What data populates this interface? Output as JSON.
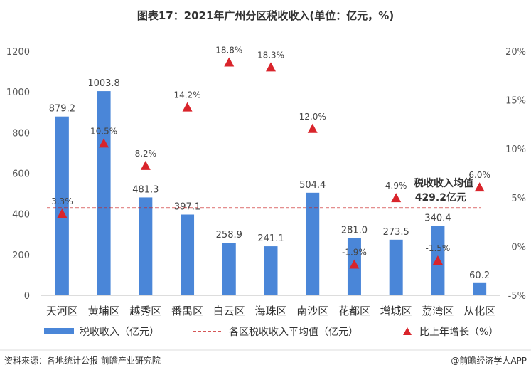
{
  "chart_data": {
    "type": "bar",
    "title": "图表17：2021年广州分区税收收入(单位：亿元，%)",
    "categories": [
      "天河区",
      "黄埔区",
      "越秀区",
      "番禺区",
      "白云区",
      "海珠区",
      "南沙区",
      "花都区",
      "增城区",
      "荔湾区",
      "从化区"
    ],
    "series": [
      {
        "name": "税收收入（亿元）",
        "type": "bar",
        "axis": "left",
        "color": "#4a86d8",
        "values": [
          879.2,
          1003.8,
          481.3,
          397.1,
          258.9,
          241.1,
          504.4,
          281.0,
          273.5,
          340.4,
          60.2
        ],
        "labels": [
          "879.2",
          "1003.8",
          "481.3",
          "397.1",
          "258.9",
          "241.1",
          "504.4",
          "281.0",
          "273.5",
          "340.4",
          "60.2"
        ]
      },
      {
        "name": "比上年增长（%）",
        "type": "scatter",
        "marker": "triangle",
        "axis": "right",
        "color": "#d9242b",
        "values": [
          3.3,
          10.5,
          8.2,
          14.2,
          18.8,
          18.3,
          12.0,
          -1.9,
          4.9,
          -1.5,
          6.0
        ],
        "labels": [
          "3.3%",
          "10.5%",
          "8.2%",
          "14.2%",
          "18.8%",
          "18.3%",
          "12.0%",
          "-1.9%",
          "4.9%",
          "-1.5%",
          "6.0%"
        ]
      },
      {
        "name": "各区税收收入平均值（亿元）",
        "type": "line",
        "axis": "left",
        "color": "#c81e1e",
        "value": 429.2
      }
    ],
    "y_left": {
      "min": 0,
      "max": 1200,
      "ticks": [
        "0",
        "200",
        "400",
        "600",
        "800",
        "1000",
        "1200"
      ]
    },
    "y_right": {
      "min": -5,
      "max": 20,
      "ticks": [
        "-5%",
        "0%",
        "5%",
        "10%",
        "15%",
        "20%"
      ]
    },
    "annotation": {
      "line1": "税收收入均值",
      "line2": "429.2亿元"
    },
    "legend_position": "bottom",
    "grid": false
  },
  "source": "资料来源：各地统计公报 前瞻产业研究院",
  "brand": "@前瞻经济学人APP"
}
